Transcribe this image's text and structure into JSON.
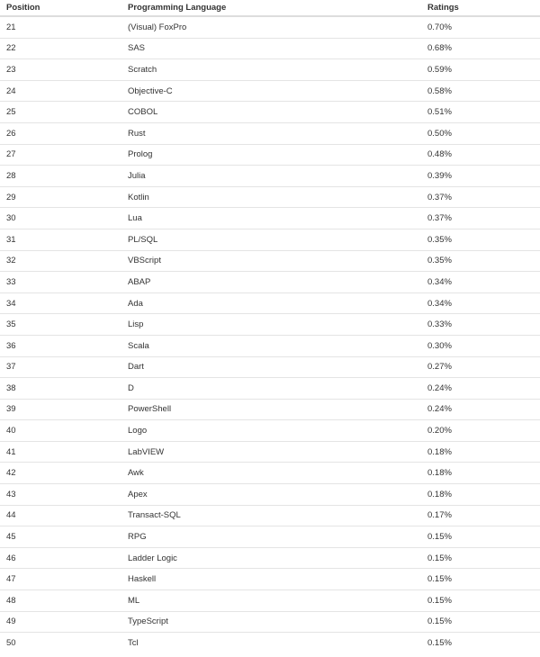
{
  "table": {
    "headers": [
      "Position",
      "Programming Language",
      "Ratings"
    ],
    "rows": [
      [
        "21",
        "(Visual) FoxPro",
        "0.70%"
      ],
      [
        "22",
        "SAS",
        "0.68%"
      ],
      [
        "23",
        "Scratch",
        "0.59%"
      ],
      [
        "24",
        "Objective-C",
        "0.58%"
      ],
      [
        "25",
        "COBOL",
        "0.51%"
      ],
      [
        "26",
        "Rust",
        "0.50%"
      ],
      [
        "27",
        "Prolog",
        "0.48%"
      ],
      [
        "28",
        "Julia",
        "0.39%"
      ],
      [
        "29",
        "Kotlin",
        "0.37%"
      ],
      [
        "30",
        "Lua",
        "0.37%"
      ],
      [
        "31",
        "PL/SQL",
        "0.35%"
      ],
      [
        "32",
        "VBScript",
        "0.35%"
      ],
      [
        "33",
        "ABAP",
        "0.34%"
      ],
      [
        "34",
        "Ada",
        "0.34%"
      ],
      [
        "35",
        "Lisp",
        "0.33%"
      ],
      [
        "36",
        "Scala",
        "0.30%"
      ],
      [
        "37",
        "Dart",
        "0.27%"
      ],
      [
        "38",
        "D",
        "0.24%"
      ],
      [
        "39",
        "PowerShell",
        "0.24%"
      ],
      [
        "40",
        "Logo",
        "0.20%"
      ],
      [
        "41",
        "LabVIEW",
        "0.18%"
      ],
      [
        "42",
        "Awk",
        "0.18%"
      ],
      [
        "43",
        "Apex",
        "0.18%"
      ],
      [
        "44",
        "Transact-SQL",
        "0.17%"
      ],
      [
        "45",
        "RPG",
        "0.15%"
      ],
      [
        "46",
        "Ladder Logic",
        "0.15%"
      ],
      [
        "47",
        "Haskell",
        "0.15%"
      ],
      [
        "48",
        "ML",
        "0.15%"
      ],
      [
        "49",
        "TypeScript",
        "0.15%"
      ],
      [
        "50",
        "Tcl",
        "0.15%"
      ]
    ]
  }
}
